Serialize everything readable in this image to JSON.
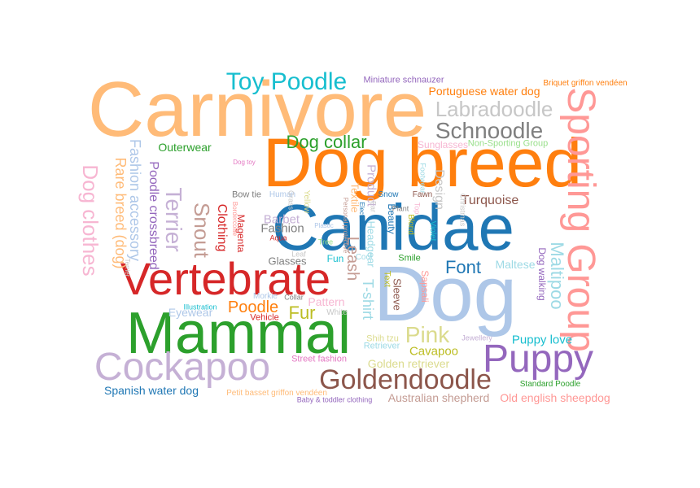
{
  "words": [
    {
      "text": "Carnivore",
      "color": "#ffbb78",
      "rot": 0
    },
    {
      "text": "Dog breed",
      "color": "#ff7f0e",
      "rot": 0
    },
    {
      "text": "Canidae",
      "color": "#1f77b4",
      "rot": 0
    },
    {
      "text": "Dog",
      "color": "#aec7e8",
      "rot": 0
    },
    {
      "text": "Mammal",
      "color": "#2ca02c",
      "rot": 0
    },
    {
      "text": "Vertebrate",
      "color": "#d62728",
      "rot": 0
    },
    {
      "text": "Sporting Group",
      "color": "#ff9896",
      "rot": 90
    },
    {
      "text": "Cockapoo",
      "color": "#c5b0d5",
      "rot": 0
    },
    {
      "text": "Puppy",
      "color": "#9467bd",
      "rot": 0
    },
    {
      "text": "Goldendoodle",
      "color": "#8c564b",
      "rot": 0
    },
    {
      "text": "Toy Poodle",
      "color": "#17becf",
      "rot": 0
    },
    {
      "text": "Schnoodle",
      "color": "#7f7f7f",
      "rot": 0
    },
    {
      "text": "Labradoodle",
      "color": "#c7c7c7",
      "rot": 0
    },
    {
      "text": "Dog clothes",
      "color": "#f7b6d2",
      "rot": 90
    },
    {
      "text": "Terrier",
      "color": "#c5b0d5",
      "rot": 90
    },
    {
      "text": "Snout",
      "color": "#c49c94",
      "rot": 90
    },
    {
      "text": "Maltipoo",
      "color": "#9edae5",
      "rot": 90
    },
    {
      "text": "Dog collar",
      "color": "#2ca02c",
      "rot": 0
    },
    {
      "text": "Font",
      "color": "#1f77b4",
      "rot": 0
    },
    {
      "text": "Pink",
      "color": "#dbdb8d",
      "rot": 0
    },
    {
      "text": "Fur",
      "color": "#bcbd22",
      "rot": 0
    },
    {
      "text": "Poodle",
      "color": "#ff7f0e",
      "rot": 0
    },
    {
      "text": "Fashion accessory",
      "color": "#aec7e8",
      "rot": 90
    },
    {
      "text": "Rare breed (dog)",
      "color": "#ffbb78",
      "rot": 90
    },
    {
      "text": "Leash",
      "color": "#c49c94",
      "rot": 90
    },
    {
      "text": "T-shirt",
      "color": "#9edae5",
      "rot": 90
    },
    {
      "text": "Turquoise",
      "color": "#8c564b",
      "rot": 0
    },
    {
      "text": "Portuguese water dog",
      "color": "#ff7f0e",
      "rot": 0
    },
    {
      "text": "Spanish water dog",
      "color": "#1f77b4",
      "rot": 0
    },
    {
      "text": "Australian shepherd",
      "color": "#c49c94",
      "rot": 0
    },
    {
      "text": "Old english sheepdog",
      "color": "#ff9896",
      "rot": 0
    },
    {
      "text": "Golden retriever",
      "color": "#dbdb8d",
      "rot": 0
    },
    {
      "text": "Cavapoo",
      "color": "#bcbd22",
      "rot": 0
    },
    {
      "text": "Puppy love",
      "color": "#17becf",
      "rot": 0
    },
    {
      "text": "Maltese",
      "color": "#9edae5",
      "rot": 0
    },
    {
      "text": "Dog walking",
      "color": "#9467bd",
      "rot": 90
    },
    {
      "text": "Clothing",
      "color": "#d62728",
      "rot": 90
    },
    {
      "text": "Poodle crossbreed",
      "color": "#9467bd",
      "rot": 90
    },
    {
      "text": "Outerwear",
      "color": "#2ca02c",
      "rot": 0
    },
    {
      "text": "Fashion",
      "color": "#7f7f7f",
      "rot": 0
    },
    {
      "text": "Barbet",
      "color": "#c5b0d5",
      "rot": 0
    },
    {
      "text": "Glasses",
      "color": "#7f7f7f",
      "rot": 0
    },
    {
      "text": "Eyewear",
      "color": "#aec7e8",
      "rot": 0
    },
    {
      "text": "Pattern",
      "color": "#f7b6d2",
      "rot": 0
    },
    {
      "text": "Magenta",
      "color": "#d62728",
      "rot": 90
    },
    {
      "text": "Product",
      "color": "#c5b0d5",
      "rot": 90
    },
    {
      "text": "Textile",
      "color": "#ffbb78",
      "rot": 90
    },
    {
      "text": "Design",
      "color": "#c7c7c7",
      "rot": 90
    },
    {
      "text": "Sleeve",
      "color": "#8c564b",
      "rot": 90
    },
    {
      "text": "Sapsali",
      "color": "#ff9896",
      "rot": 90
    },
    {
      "text": "Headgear",
      "color": "#9edae5",
      "rot": 90
    },
    {
      "text": "Text",
      "color": "#bcbd22",
      "rot": 90
    },
    {
      "text": "Beauty",
      "color": "#1f77b4",
      "rot": 90
    },
    {
      "text": "Miniature schnauzer",
      "color": "#9467bd",
      "rot": 0
    },
    {
      "text": "Sunglasses",
      "color": "#f7b6d2",
      "rot": 0
    },
    {
      "text": "Non-Sporting Group",
      "color": "#98df8a",
      "rot": 0
    },
    {
      "text": "Briquet griffon vendéen",
      "color": "#ff7f0e",
      "rot": 0
    },
    {
      "text": "Street fashion",
      "color": "#e377c2",
      "rot": 0
    },
    {
      "text": "Shih tzu",
      "color": "#dbdb8d",
      "rot": 0
    },
    {
      "text": "Retriever",
      "color": "#9edae5",
      "rot": 0
    },
    {
      "text": "Petit basset griffon vendéen",
      "color": "#ffbb78",
      "rot": 0
    },
    {
      "text": "Baby & toddler clothing",
      "color": "#9467bd",
      "rot": 0
    },
    {
      "text": "Standard Poodle",
      "color": "#2ca02c",
      "rot": 0
    },
    {
      "text": "Jewellery",
      "color": "#c5b0d5",
      "rot": 0
    },
    {
      "text": "Bow tie",
      "color": "#7f7f7f",
      "rot": 0
    },
    {
      "text": "Human",
      "color": "#aec7e8",
      "rot": 0
    },
    {
      "text": "Snow",
      "color": "#1f77b4",
      "rot": 0
    },
    {
      "text": "Fawn",
      "color": "#8c564b",
      "rot": 0
    },
    {
      "text": "Plant",
      "color": "#7f7f7f",
      "rot": 0
    },
    {
      "text": "Christmas",
      "color": "#c7c7c7",
      "rot": 90
    },
    {
      "text": "Violet",
      "color": "#17becf",
      "rot": 90
    },
    {
      "text": "Blond",
      "color": "#bcbd22",
      "rot": 90
    },
    {
      "text": "Top",
      "color": "#f7b6d2",
      "rot": 90
    },
    {
      "text": "Footwear",
      "color": "#9edae5",
      "rot": 90
    },
    {
      "text": "Illustration",
      "color": "#17becf",
      "rot": 0
    },
    {
      "text": "Vehicle",
      "color": "#d62728",
      "rot": 0
    },
    {
      "text": "Morkie",
      "color": "#aec7e8",
      "rot": 0
    },
    {
      "text": "Collar",
      "color": "#7f7f7f",
      "rot": 0
    },
    {
      "text": "White",
      "color": "#c7c7c7",
      "rot": 0
    },
    {
      "text": "Aqua",
      "color": "#d62728",
      "rot": 0
    },
    {
      "text": "Tree",
      "color": "#98df8a",
      "rot": 0
    },
    {
      "text": "Leaf",
      "color": "#c7c7c7",
      "rot": 0
    },
    {
      "text": "Cool",
      "color": "#9edae5",
      "rot": 0
    },
    {
      "text": "Smile",
      "color": "#2ca02c",
      "rot": 0
    },
    {
      "text": "Fun",
      "color": "#17becf",
      "rot": 0
    },
    {
      "text": "Plastic",
      "color": "#aec7e8",
      "rot": 0
    },
    {
      "text": "Dog toy",
      "color": "#e377c2",
      "rot": 0
    },
    {
      "text": "Yellow",
      "color": "#dbdb8d",
      "rot": 90
    },
    {
      "text": "Grass",
      "color": "#c7c7c7",
      "rot": 90
    },
    {
      "text": "Bordercollie",
      "color": "#ff9896",
      "rot": 90
    },
    {
      "text": "Terrier",
      "color": "#c7c7c7",
      "rot": 90
    },
    {
      "text": "Personal protective",
      "color": "#c49c94",
      "rot": 90
    },
    {
      "text": "Electric blue",
      "color": "#1f77b4",
      "rot": 90
    },
    {
      "text": "Ear",
      "color": "#c7c7c7",
      "rot": 90
    }
  ]
}
